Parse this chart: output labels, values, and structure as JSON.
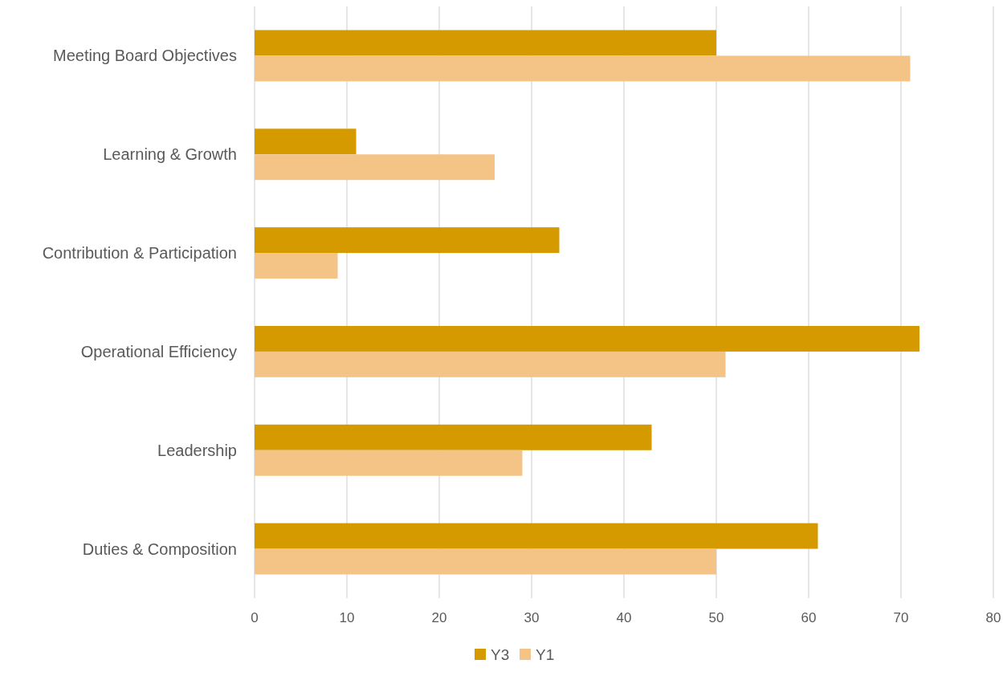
{
  "chart_data": {
    "type": "bar",
    "orientation": "horizontal",
    "categories": [
      "Meeting Board Objectives",
      "Learning & Growth",
      "Contribution & Participation",
      "Operational Efficiency",
      "Leadership",
      "Duties & Composition"
    ],
    "series": [
      {
        "name": "Y3",
        "color": "#d49a00",
        "values": [
          50,
          11,
          33,
          72,
          43,
          61
        ]
      },
      {
        "name": "Y1",
        "color": "#f4c487",
        "values": [
          71,
          26,
          9,
          51,
          29,
          50
        ]
      }
    ],
    "xlim": [
      0,
      80
    ],
    "xticks": [
      0,
      10,
      20,
      30,
      40,
      50,
      60,
      70,
      80
    ],
    "grid": "x",
    "legend": "bottom"
  }
}
